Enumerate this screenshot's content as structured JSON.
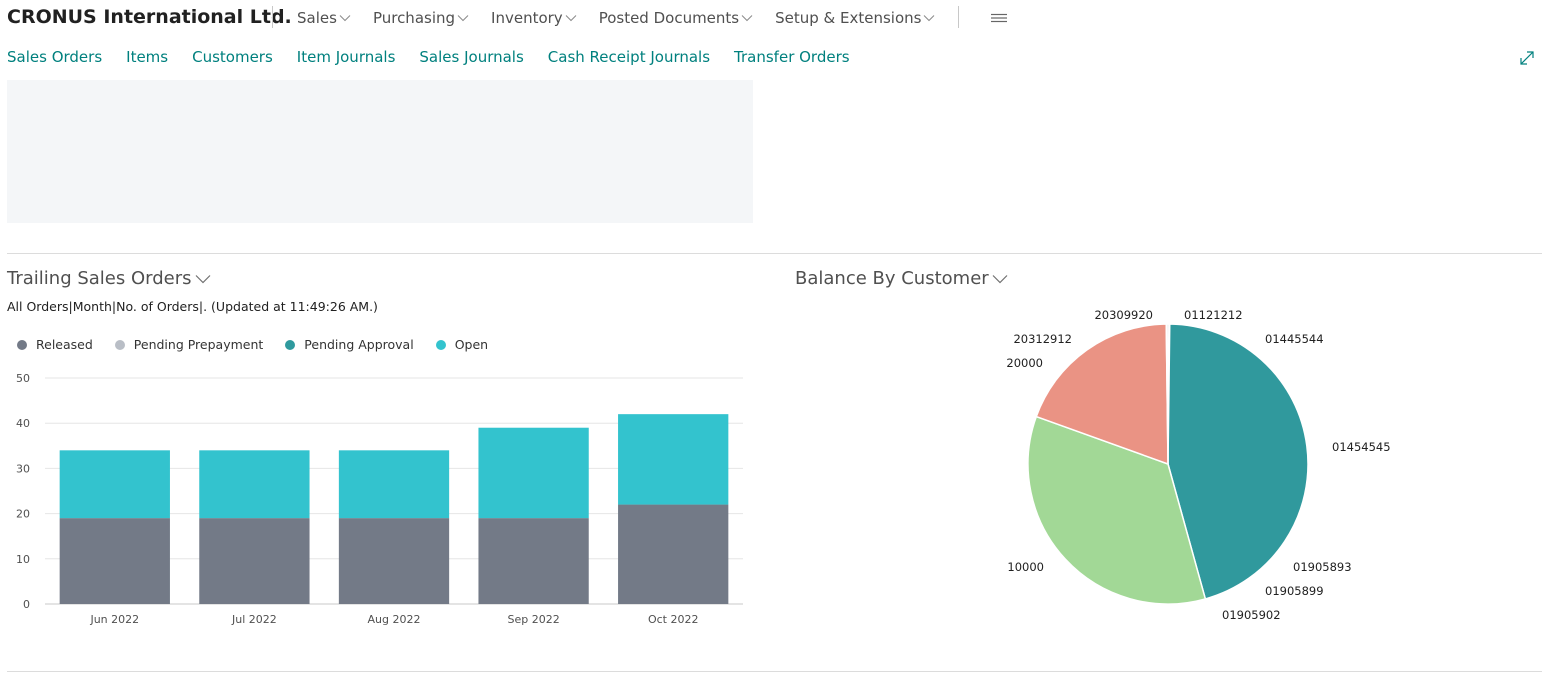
{
  "header": {
    "company": "CRONUS International Ltd.",
    "menus": [
      {
        "label": "Sales"
      },
      {
        "label": "Purchasing"
      },
      {
        "label": "Inventory"
      },
      {
        "label": "Posted Documents"
      },
      {
        "label": "Setup & Extensions"
      }
    ],
    "hamburger_icon": "hamburger-icon"
  },
  "subnav": {
    "links": [
      {
        "label": "Sales Orders"
      },
      {
        "label": "Items"
      },
      {
        "label": "Customers"
      },
      {
        "label": "Item Journals"
      },
      {
        "label": "Sales Journals"
      },
      {
        "label": "Cash Receipt Journals"
      },
      {
        "label": "Transfer Orders"
      }
    ],
    "expand_icon": "expand-icon"
  },
  "trailing": {
    "title": "Trailing Sales Orders",
    "subtitle": "All Orders|Month|No. of Orders|. (Updated at 11:49:26 AM.)",
    "legend": [
      {
        "label": "Released",
        "color": "#737a87"
      },
      {
        "label": "Pending Prepayment",
        "color": "#b9bec6"
      },
      {
        "label": "Pending Approval",
        "color": "#2f9a9e"
      },
      {
        "label": "Open",
        "color": "#33c3ce"
      }
    ]
  },
  "balance": {
    "title": "Balance By Customer"
  },
  "chart_data": [
    {
      "type": "bar",
      "stacked": true,
      "categories": [
        "Jun 2022",
        "Jul 2022",
        "Aug 2022",
        "Sep 2022",
        "Oct 2022"
      ],
      "series": [
        {
          "name": "Released",
          "color": "#737a87",
          "values": [
            19,
            19,
            19,
            19,
            22
          ]
        },
        {
          "name": "Pending Prepayment",
          "color": "#b9bec6",
          "values": [
            0,
            0,
            0,
            0,
            0
          ]
        },
        {
          "name": "Pending Approval",
          "color": "#2f9a9e",
          "values": [
            0,
            0,
            0,
            0,
            0
          ]
        },
        {
          "name": "Open",
          "color": "#33c3ce",
          "values": [
            15,
            15,
            15,
            20,
            20
          ]
        }
      ],
      "ylim": [
        0,
        50
      ],
      "yticks": [
        0,
        10,
        20,
        30,
        40,
        50
      ],
      "grid": true,
      "legend": "top-left"
    },
    {
      "type": "pie",
      "slices": [
        {
          "label": "01121212",
          "value": 0.2,
          "color": "#b9bec6"
        },
        {
          "label": "01445544",
          "value": 45.5,
          "color": "#30999d"
        },
        {
          "label": "01454545",
          "value": 0,
          "color": "#2b8f93"
        },
        {
          "label": "01905893",
          "value": 0,
          "color": "#33c3ce"
        },
        {
          "label": "01905899",
          "value": 0,
          "color": "#33c3ce"
        },
        {
          "label": "01905902",
          "value": 0,
          "color": "#33c3ce"
        },
        {
          "label": "10000",
          "value": 34.8,
          "color": "#a2d896"
        },
        {
          "label": "20000",
          "value": 19.3,
          "color": "#ea9384"
        },
        {
          "label": "20312912",
          "value": 0,
          "color": "#ea9384"
        },
        {
          "label": "20309920",
          "value": 0.2,
          "color": "#d7d7d7"
        }
      ]
    }
  ]
}
